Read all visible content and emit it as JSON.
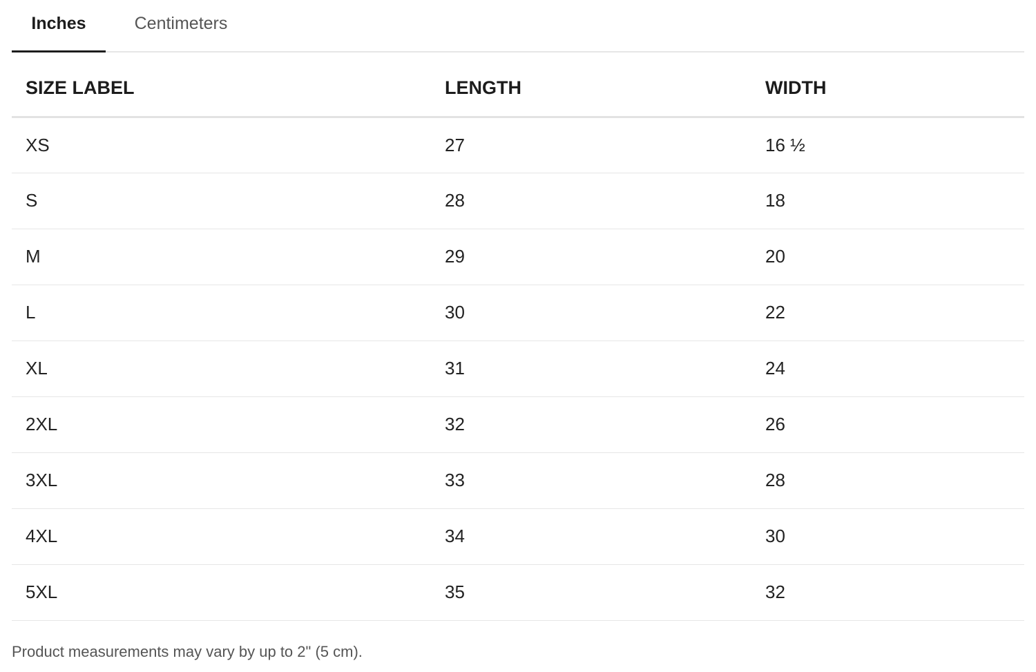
{
  "tabs": [
    {
      "label": "Inches",
      "active": true
    },
    {
      "label": "Centimeters",
      "active": false
    }
  ],
  "table": {
    "headers": [
      "SIZE LABEL",
      "LENGTH",
      "WIDTH"
    ],
    "rows": [
      [
        "XS",
        "27",
        "16 ½"
      ],
      [
        "S",
        "28",
        "18"
      ],
      [
        "M",
        "29",
        "20"
      ],
      [
        "L",
        "30",
        "22"
      ],
      [
        "XL",
        "31",
        "24"
      ],
      [
        "2XL",
        "32",
        "26"
      ],
      [
        "3XL",
        "33",
        "28"
      ],
      [
        "4XL",
        "34",
        "30"
      ],
      [
        "5XL",
        "35",
        "32"
      ]
    ]
  },
  "footnote": "Product measurements may vary by up to 2\" (5 cm).",
  "colors": {
    "active_tab_underline": "#1c1c1c",
    "divider": "#e6e6e6",
    "muted_text": "#555555"
  }
}
